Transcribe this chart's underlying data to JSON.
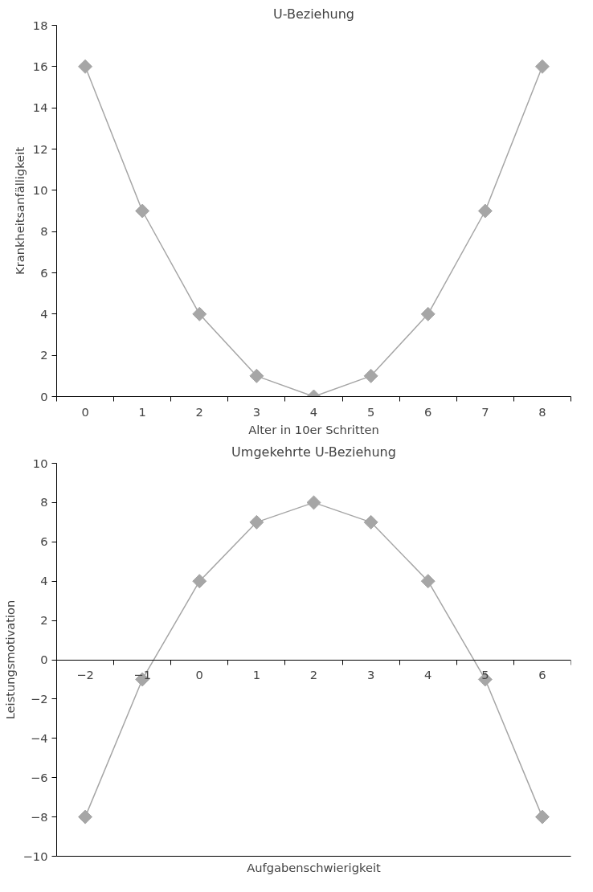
{
  "chart_data": [
    {
      "type": "line",
      "title": "U-Beziehung",
      "xlabel": "Alter in 10er Schritten",
      "ylabel": "Krankheitsanfälligkeit",
      "categories": [
        "0",
        "1",
        "2",
        "3",
        "4",
        "5",
        "6",
        "7",
        "8"
      ],
      "values": [
        16,
        9,
        4,
        1,
        0,
        1,
        4,
        9,
        16
      ],
      "color": "#a6a6a6",
      "marker": "diamond",
      "ylim": [
        0,
        18
      ],
      "yticks": [
        0,
        2,
        4,
        6,
        8,
        10,
        12,
        14,
        16,
        18
      ],
      "grid": false
    },
    {
      "type": "line",
      "title": "Umgekehrte U-Beziehung",
      "xlabel": "Aufgabenschwierigkeit",
      "ylabel": "Leistungsmotivation",
      "categories": [
        "−2",
        "−1",
        "0",
        "1",
        "2",
        "3",
        "4",
        "5",
        "6"
      ],
      "values": [
        -8,
        -1,
        4,
        7,
        8,
        7,
        4,
        -1,
        -8
      ],
      "color": "#a6a6a6",
      "marker": "diamond",
      "ylim": [
        -10,
        10
      ],
      "yticks": [
        {
          "value": -10,
          "label": "−10"
        },
        {
          "value": -8,
          "label": "−8"
        },
        {
          "value": -6,
          "label": "−6"
        },
        {
          "value": -4,
          "label": "−4"
        },
        {
          "value": -2,
          "label": "−2"
        },
        0,
        2,
        4,
        6,
        8,
        10
      ],
      "grid": false
    }
  ]
}
